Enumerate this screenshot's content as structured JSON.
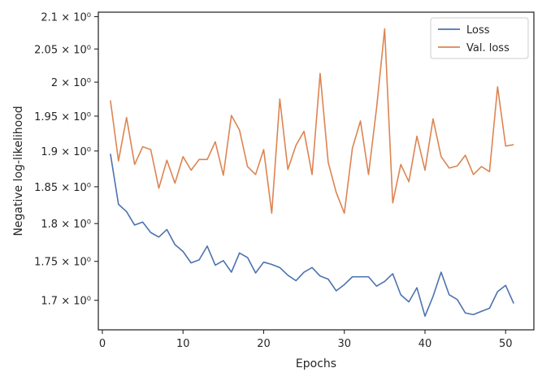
{
  "chart_data": {
    "type": "line",
    "title": "",
    "xlabel": "Epochs",
    "ylabel": "Negative log-likelihood",
    "yscale": "log",
    "xlim": [
      -0.5,
      53.5
    ],
    "ylim": [
      1.663,
      2.107
    ],
    "x_ticks": [
      0,
      10,
      20,
      30,
      40,
      50
    ],
    "x_tick_labels": [
      "0",
      "10",
      "20",
      "30",
      "40",
      "50"
    ],
    "y_ticks": [
      1.7,
      1.75,
      1.8,
      1.85,
      1.9,
      1.95,
      2.0,
      2.05,
      2.1
    ],
    "y_tick_labels": [
      "1.7 × 10⁰",
      "1.75 × 10⁰",
      "1.8 × 10⁰",
      "1.85 × 10⁰",
      "1.9 × 10⁰",
      "1.95 × 10⁰",
      "2 × 10⁰",
      "2.05 × 10⁰",
      "2.1 × 10⁰"
    ],
    "legend_position": "top-right",
    "grid": false,
    "x": [
      1,
      2,
      3,
      4,
      5,
      6,
      7,
      8,
      9,
      10,
      11,
      12,
      13,
      14,
      15,
      16,
      17,
      18,
      19,
      20,
      21,
      22,
      23,
      24,
      25,
      26,
      27,
      28,
      29,
      30,
      31,
      32,
      33,
      34,
      35,
      36,
      37,
      38,
      39,
      40,
      41,
      42,
      43,
      44,
      45,
      46,
      47,
      48,
      49,
      50,
      51
    ],
    "series": [
      {
        "name": "Loss",
        "color": "#4c72b0",
        "values": [
          1.896,
          1.826,
          1.816,
          1.798,
          1.802,
          1.788,
          1.782,
          1.792,
          1.772,
          1.763,
          1.748,
          1.752,
          1.77,
          1.745,
          1.751,
          1.736,
          1.761,
          1.755,
          1.735,
          1.749,
          1.746,
          1.742,
          1.732,
          1.725,
          1.736,
          1.742,
          1.731,
          1.727,
          1.712,
          1.72,
          1.73,
          1.73,
          1.73,
          1.718,
          1.724,
          1.734,
          1.707,
          1.698,
          1.716,
          1.68,
          1.705,
          1.736,
          1.707,
          1.701,
          1.684,
          1.682,
          1.686,
          1.69,
          1.711,
          1.719,
          1.696
        ]
      },
      {
        "name": "Val. loss",
        "color": "#dd8452",
        "values": [
          1.973,
          1.886,
          1.948,
          1.881,
          1.906,
          1.902,
          1.848,
          1.887,
          1.855,
          1.892,
          1.873,
          1.888,
          1.888,
          1.913,
          1.866,
          1.951,
          1.93,
          1.878,
          1.867,
          1.902,
          1.814,
          1.975,
          1.874,
          1.908,
          1.928,
          1.867,
          2.013,
          1.884,
          1.842,
          1.814,
          1.904,
          1.943,
          1.867,
          1.962,
          2.081,
          1.828,
          1.881,
          1.857,
          1.921,
          1.873,
          1.946,
          1.892,
          1.876,
          1.879,
          1.894,
          1.867,
          1.878,
          1.871,
          1.993,
          1.907,
          1.909
        ]
      }
    ]
  }
}
